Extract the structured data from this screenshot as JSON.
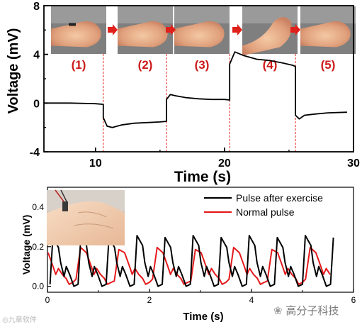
{
  "chart_data": [
    {
      "type": "line",
      "ylabel": "Voltage (mV)",
      "xlabel": "Time (s)",
      "xlim": [
        6,
        30
      ],
      "ylim": [
        -4,
        8
      ],
      "x_ticks": [
        "10",
        "20",
        "30"
      ],
      "y_ticks": [
        "-4",
        "0",
        "4",
        "8"
      ],
      "event_times": [
        10.6,
        15.5,
        20.4,
        25.5
      ],
      "series": [
        {
          "color": "#000000",
          "x": [
            6,
            8,
            10,
            10.6,
            10.6,
            10.9,
            11.3,
            12,
            13,
            14,
            15,
            15.5,
            15.5,
            15.8,
            16.2,
            17,
            18,
            19,
            20,
            20.4,
            20.4,
            20.8,
            21.5,
            22.5,
            23.5,
            24.5,
            25.3,
            25.5,
            25.5,
            25.8,
            26.2,
            27,
            28,
            29.5
          ],
          "y": [
            0,
            0,
            -0.05,
            -0.1,
            -1.2,
            -1.9,
            -2.0,
            -1.8,
            -1.65,
            -1.6,
            -1.55,
            -1.5,
            0.3,
            0.7,
            0.6,
            0.45,
            0.35,
            0.3,
            0.3,
            0.25,
            3.2,
            4.2,
            3.9,
            3.6,
            3.5,
            3.3,
            3.1,
            3.0,
            -1.0,
            -1.3,
            -1.0,
            -0.9,
            -0.8,
            -0.75
          ]
        }
      ],
      "photos": [
        {
          "label": "(1)"
        },
        {
          "label": "(2)"
        },
        {
          "label": "(3)"
        },
        {
          "label": "(4)"
        },
        {
          "label": "(5)"
        }
      ],
      "label_color": "#cc1a1a",
      "arrow_color": "#e0201a"
    },
    {
      "type": "line",
      "ylabel": "Voltage (mV)",
      "xlabel": "Time (s)",
      "xlim": [
        0,
        6
      ],
      "ylim": [
        -0.03,
        0.5
      ],
      "x_ticks": [
        "0",
        "2",
        "4",
        "6"
      ],
      "y_ticks": [
        "0.0",
        "0.2",
        "0.4"
      ],
      "legend_position": "top-right",
      "series": [
        {
          "name": "Pulse after exercise",
          "color": "#000000",
          "period": 0.55,
          "start": 0.05,
          "end": 5.7,
          "shape_t": [
            0,
            0.1,
            0.3,
            0.38,
            0.5,
            0.58,
            0.7,
            0.85,
            1
          ],
          "shape_y": [
            0.01,
            0.25,
            0.2,
            0.12,
            0.05,
            0.1,
            0.06,
            0.0,
            0.01
          ]
        },
        {
          "name": "Normal pulse",
          "color": "#e41a1c",
          "period": 0.75,
          "start": -0.25,
          "end": 5.6,
          "shape_t": [
            0,
            0.08,
            0.2,
            0.35,
            0.48,
            0.55,
            0.62,
            0.72,
            0.82,
            0.9,
            1
          ],
          "shape_y": [
            0.02,
            0.03,
            0.19,
            0.17,
            0.1,
            0.06,
            0.09,
            0.06,
            0.04,
            0.01,
            0.02
          ]
        }
      ]
    }
  ],
  "watermark_left": "九章软件",
  "watermark_right": "高分子科技"
}
